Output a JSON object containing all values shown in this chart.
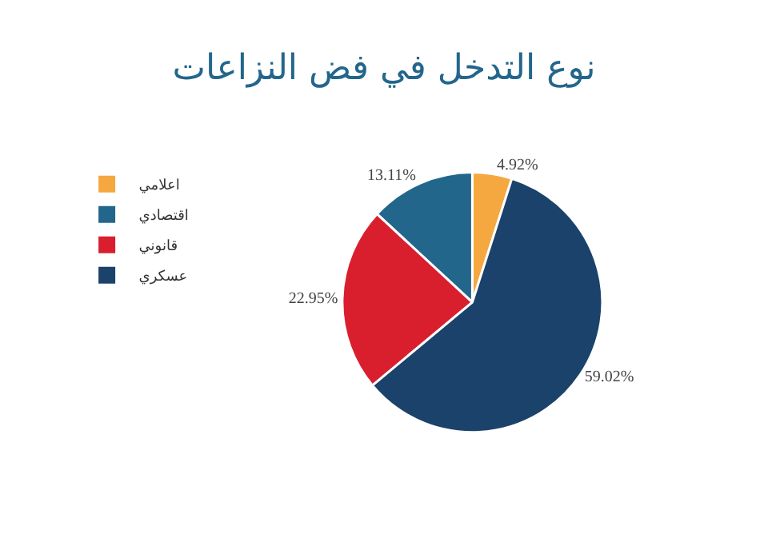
{
  "chart_data": {
    "type": "pie",
    "title": "نوع التدخل في فض النزاعات",
    "categories": [
      "اعلامي",
      "اقتصادي",
      "قانوني",
      "عسكري"
    ],
    "values": [
      4.92,
      13.11,
      22.95,
      59.02
    ],
    "value_labels": [
      "4.92%",
      "13.11%",
      "22.95%",
      "59.02%"
    ],
    "colors": [
      "#f5a840",
      "#23668c",
      "#d91f2e",
      "#1b426a"
    ],
    "legend": "left"
  }
}
